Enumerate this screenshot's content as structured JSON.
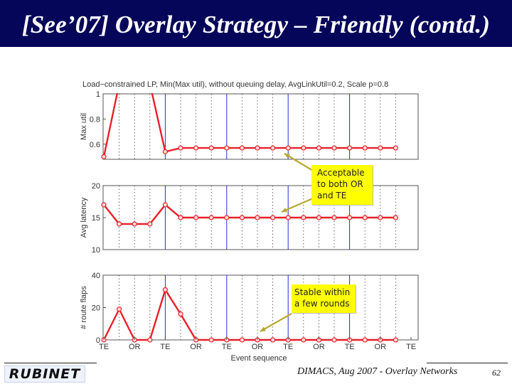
{
  "slide": {
    "title": "[See’07] Overlay Strategy – Friendly (contd.)",
    "footer": "DIMACS, Aug 2007 - Overlay Networks",
    "page": "62",
    "logo": "RUBINET"
  },
  "callouts": [
    {
      "lines": [
        "Acceptable",
        "to both OR",
        "and TE"
      ]
    },
    {
      "lines": [
        "Stable within",
        "a few rounds"
      ]
    }
  ],
  "colors": {
    "title_bg": "#050559",
    "series": "#e8202a",
    "te_line": "#2a2ad0",
    "callout": "#ffff00"
  },
  "chart_data": {
    "type": "line",
    "title": "Load−constrained LP, Min(Max util), without queuing delay, AvgLinkUtil=0.2, Scale p=0.8",
    "xlabel": "Event sequence",
    "x": [
      1,
      2,
      3,
      4,
      5,
      6,
      7,
      8,
      9,
      10,
      11,
      12,
      13,
      14,
      15,
      16,
      17,
      18,
      19,
      20
    ],
    "x_tick_labels": [
      "TE",
      "OR",
      "TE",
      "OR",
      "TE",
      "OR",
      "TE",
      "OR",
      "TE",
      "OR",
      "TE"
    ],
    "te_events": [
      1,
      5,
      9,
      13,
      17
    ],
    "grid": "dotted vertical",
    "panels": [
      {
        "ylabel": "Max util",
        "ylim": [
          0.48,
          1.0
        ],
        "yticks": [
          "1",
          "0.8",
          "0.6"
        ],
        "values": [
          0.5,
          1.08,
          1.08,
          1.08,
          0.54,
          0.57,
          0.57,
          0.57,
          0.57,
          0.57,
          0.57,
          0.57,
          0.57,
          0.57,
          0.57,
          0.57,
          0.57,
          0.57,
          0.57,
          0.57
        ]
      },
      {
        "ylabel": "Avg latency",
        "ylim": [
          10,
          20
        ],
        "yticks": [
          "20",
          "15",
          "10"
        ],
        "values": [
          17,
          14,
          14,
          14,
          17,
          15,
          15,
          15,
          15,
          15,
          15,
          15,
          15,
          15,
          15,
          15,
          15,
          15,
          15,
          15
        ]
      },
      {
        "ylabel": "# route flaps",
        "ylim": [
          0,
          40
        ],
        "yticks": [
          "40",
          "20",
          "0"
        ],
        "values": [
          0,
          19,
          0,
          0,
          31,
          16,
          0,
          0,
          0,
          0,
          0,
          0,
          0,
          0,
          0,
          0,
          0,
          0,
          0,
          0
        ]
      }
    ]
  }
}
